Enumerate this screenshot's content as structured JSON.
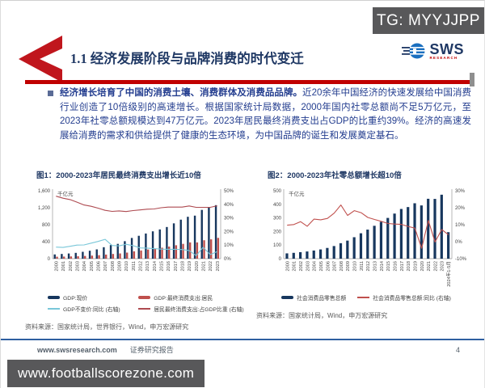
{
  "watermarks": {
    "tg_badge": "TG: MYYJJPP",
    "site": "www.footballscorezone.com"
  },
  "header": {
    "section_title": "1.1 经济发展阶段与品牌消费的时代变迁",
    "logo_text": "SWS",
    "logo_subtext": "RESEARCH"
  },
  "body": {
    "bold_lead": "经济增长培育了中国的消费土壤、消费群体及消费品品牌。",
    "rest": "近20余年中国经济的快速发展给中国消费行业创造了10倍级别的高速增长。根据国家统计局数据，2000年国内社零总额尚不足5万亿元，至2023年社零总额规模达到47万亿元。2023年居民最终消费支出占GDP的比重约39%。经济的高速发展给消费的需求和供给提供了健康的生态环境，为中国品牌的诞生和发展奠定基石。"
  },
  "figures": [
    {
      "title": "图1：2000-2023年居民最终消费支出增长近10倍",
      "source": "资料来源：国家统计局，世界银行，Wind，申万宏源研究"
    },
    {
      "title": "图2：2000-2023年社零总额增长超10倍",
      "source": "资料来源：国家统计局，Wind，申万宏源研究"
    }
  ],
  "footer": {
    "url": "www.swsresearch.com",
    "label": "证券研究报告",
    "page": "4"
  },
  "colors": {
    "accent_red": "#c00000",
    "navy": "#1f3864",
    "body_blue": "#233d8f",
    "bar_blue": "#17375e",
    "bar_red": "#c0504d",
    "line_cyan": "#79c7d9",
    "line_darkred": "#ae4a50",
    "line_red": "#c0504d",
    "watermark_gray": "#58585a"
  },
  "chart_data": [
    {
      "type": "bar",
      "unit": "千亿元",
      "categories": [
        "2000",
        "2001",
        "2002",
        "2003",
        "2004",
        "2005",
        "2006",
        "2007",
        "2008",
        "2009",
        "2010",
        "2011",
        "2012",
        "2013",
        "2014",
        "2015",
        "2016",
        "2017",
        "2018",
        "2019",
        "2020",
        "2021",
        "2022",
        "2023"
      ],
      "left_axis": {
        "min": 0,
        "max": 1600,
        "ticks": [
          "0",
          "400",
          "800",
          "1,200",
          "1,600"
        ]
      },
      "right_axis": {
        "min": 0,
        "max": 50,
        "ticks": [
          "0%",
          "10%",
          "20%",
          "30%",
          "40%",
          "50%"
        ]
      },
      "series": [
        {
          "name": "GDP:现价",
          "type": "bar",
          "axis": "left",
          "color": "#17375e",
          "values": [
            100,
            111,
            122,
            137,
            162,
            187,
            219,
            270,
            320,
            349,
            412,
            488,
            539,
            593,
            644,
            689,
            746,
            832,
            919,
            987,
            1014,
            1149,
            1205,
            1261
          ]
        },
        {
          "name": "GDP:最终消费支出:居民",
          "type": "bar",
          "axis": "left",
          "color": "#c0504d",
          "values": [
            46,
            49,
            53,
            57,
            64,
            72,
            82,
            96,
            111,
            123,
            143,
            173,
            193,
            216,
            235,
            258,
            284,
            316,
            349,
            383,
            383,
            434,
            455,
            490
          ]
        },
        {
          "name": "GDP不变价:同比 (右轴)",
          "type": "line",
          "axis": "right",
          "color": "#79c7d9",
          "values": [
            8.5,
            8.3,
            9.1,
            10.0,
            10.1,
            11.4,
            12.7,
            14.2,
            9.7,
            9.4,
            10.6,
            9.6,
            7.9,
            7.8,
            7.4,
            7.0,
            6.9,
            6.9,
            6.7,
            6.0,
            2.2,
            8.4,
            3.0,
            5.2
          ]
        },
        {
          "name": "居民最终消费支出:占GDP比重 (右轴)",
          "type": "line",
          "axis": "right",
          "color": "#ae4a50",
          "values": [
            46.0,
            44.5,
            43.5,
            41.6,
            39.5,
            38.6,
            37.2,
            35.6,
            34.8,
            35.2,
            34.7,
            35.4,
            35.9,
            36.4,
            36.6,
            37.5,
            38.0,
            38.0,
            38.0,
            38.8,
            37.8,
            37.8,
            37.8,
            38.9
          ]
        }
      ]
    },
    {
      "type": "bar",
      "unit": "千亿元",
      "categories": [
        "2000",
        "2001",
        "2002",
        "2003",
        "2004",
        "2005",
        "2006",
        "2007",
        "2008",
        "2009",
        "2010",
        "2011",
        "2012",
        "2013",
        "2014",
        "2015",
        "2016",
        "2017",
        "2018",
        "2019",
        "2020",
        "2021",
        "2022",
        "2023",
        "2024年1-5月"
      ],
      "left_axis": {
        "min": 0,
        "max": 500,
        "ticks": [
          "0",
          "100",
          "200",
          "300",
          "400",
          "500"
        ]
      },
      "right_axis": {
        "min": -10,
        "max": 30,
        "ticks": [
          "-10%",
          "0%",
          "10%",
          "20%",
          "30%"
        ]
      },
      "series": [
        {
          "name": "社会消费品零售总额",
          "type": "bar",
          "axis": "left",
          "color": "#17375e",
          "values": [
            39,
            43,
            48,
            53,
            60,
            68,
            79,
            93,
            114,
            133,
            158,
            187,
            214,
            242,
            271,
            300,
            332,
            366,
            380,
            408,
            392,
            441,
            440,
            471,
            195
          ]
        },
        {
          "name": "社会消费品零售总额:同比 (右轴)",
          "type": "line",
          "axis": "right",
          "color": "#c0504d",
          "values": [
            9.7,
            10.1,
            11.8,
            9.1,
            13.3,
            12.9,
            13.7,
            16.8,
            21.6,
            15.5,
            18.3,
            17.1,
            14.3,
            13.1,
            12.0,
            10.7,
            10.4,
            10.2,
            9.0,
            8.0,
            -3.9,
            12.5,
            -0.2,
            7.2,
            4.1
          ]
        }
      ]
    }
  ]
}
